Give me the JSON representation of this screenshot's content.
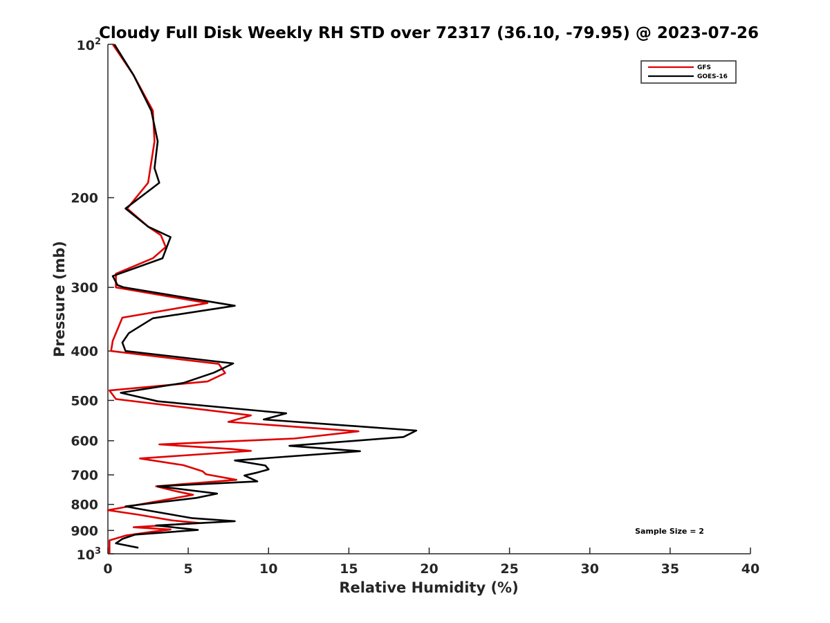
{
  "chart_data": {
    "type": "line",
    "title": "Cloudy Full Disk Weekly RH STD over 72317 (36.10, -79.95) @ 2023-07-26",
    "xlabel": "Relative Humidity (%)",
    "ylabel": "Pressure (mb)",
    "xlim": [
      0,
      40
    ],
    "ylim": [
      100,
      1000
    ],
    "yscale": "log",
    "y_reversed": true,
    "x_ticks": [
      "0",
      "5",
      "10",
      "15",
      "20",
      "25",
      "30",
      "35",
      "40"
    ],
    "y_ticks": [
      {
        "value": 100,
        "label": "10",
        "sup": "2"
      },
      {
        "value": 200,
        "label": "200"
      },
      {
        "value": 300,
        "label": "300"
      },
      {
        "value": 400,
        "label": "400"
      },
      {
        "value": 500,
        "label": "500"
      },
      {
        "value": 600,
        "label": "600"
      },
      {
        "value": 700,
        "label": "700"
      },
      {
        "value": 800,
        "label": "800"
      },
      {
        "value": 900,
        "label": "900"
      },
      {
        "value": 1000,
        "label": "10",
        "sup": "3"
      }
    ],
    "legend_position": "top-right",
    "grid": false,
    "annotation": "Sample Size = 2",
    "series": [
      {
        "name": "GFS",
        "color": "#e00000",
        "points": [
          [
            0.3,
            100
          ],
          [
            1.6,
            115
          ],
          [
            2.8,
            135
          ],
          [
            2.9,
            155
          ],
          [
            2.5,
            187
          ],
          [
            1.2,
            210
          ],
          [
            2.5,
            228
          ],
          [
            3.3,
            237
          ],
          [
            3.6,
            250
          ],
          [
            2.8,
            263
          ],
          [
            0.5,
            282
          ],
          [
            0.5,
            300
          ],
          [
            6.2,
            322
          ],
          [
            0.9,
            344
          ],
          [
            0.3,
            382
          ],
          [
            0.2,
            400
          ],
          [
            6.9,
            424
          ],
          [
            7.3,
            442
          ],
          [
            6.2,
            459
          ],
          [
            0.1,
            478
          ],
          [
            0.5,
            497
          ],
          [
            8.9,
            535
          ],
          [
            7.5,
            551
          ],
          [
            15.6,
            575
          ],
          [
            11.6,
            594
          ],
          [
            3.2,
            610
          ],
          [
            7.7,
            623
          ],
          [
            8.9,
            628
          ],
          [
            2.0,
            650
          ],
          [
            4.7,
            670
          ],
          [
            5.9,
            689
          ],
          [
            6.1,
            698
          ],
          [
            8.0,
            716
          ],
          [
            3.0,
            737
          ],
          [
            4.1,
            752
          ],
          [
            5.3,
            766
          ],
          [
            0.0,
            821
          ],
          [
            1.9,
            838
          ],
          [
            4.0,
            860
          ],
          [
            5.7,
            870
          ],
          [
            1.6,
            887
          ],
          [
            3.9,
            896
          ],
          [
            2.9,
            904
          ],
          [
            1.1,
            921
          ],
          [
            0.1,
            941
          ],
          [
            0.1,
            1000
          ]
        ]
      },
      {
        "name": "GOES-16",
        "color": "#000000",
        "points": [
          [
            0.4,
            100
          ],
          [
            1.6,
            115
          ],
          [
            2.7,
            135
          ],
          [
            3.1,
            155
          ],
          [
            2.9,
            175
          ],
          [
            3.2,
            187
          ],
          [
            1.1,
            210
          ],
          [
            2.5,
            228
          ],
          [
            3.9,
            239
          ],
          [
            3.4,
            263
          ],
          [
            0.3,
            285
          ],
          [
            0.6,
            297
          ],
          [
            1.0,
            300
          ],
          [
            7.9,
            326
          ],
          [
            2.8,
            345
          ],
          [
            1.3,
            369
          ],
          [
            0.9,
            385
          ],
          [
            1.1,
            400
          ],
          [
            7.8,
            423
          ],
          [
            6.6,
            441
          ],
          [
            4.7,
            462
          ],
          [
            0.8,
            483
          ],
          [
            3.1,
            502
          ],
          [
            11.1,
            530
          ],
          [
            9.7,
            545
          ],
          [
            19.2,
            573
          ],
          [
            18.4,
            590
          ],
          [
            11.3,
            614
          ],
          [
            15.7,
            629
          ],
          [
            7.9,
            656
          ],
          [
            9.8,
            671
          ],
          [
            10.0,
            683
          ],
          [
            9.2,
            694
          ],
          [
            8.5,
            702
          ],
          [
            9.3,
            721
          ],
          [
            3.1,
            737
          ],
          [
            6.8,
            762
          ],
          [
            5.5,
            777
          ],
          [
            1.1,
            807
          ],
          [
            1.9,
            816
          ],
          [
            5.2,
            851
          ],
          [
            7.9,
            863
          ],
          [
            3.0,
            880
          ],
          [
            5.6,
            898
          ],
          [
            1.7,
            917
          ],
          [
            0.9,
            935
          ],
          [
            0.5,
            954
          ],
          [
            1.9,
            973
          ]
        ]
      }
    ]
  }
}
